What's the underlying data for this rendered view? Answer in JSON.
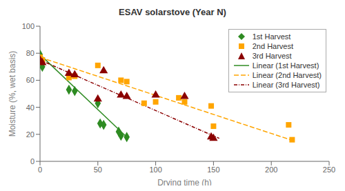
{
  "chart_data": {
    "type": "scatter",
    "title": "ESAV solarstove (Year N)",
    "xlabel": "Drying time (h)",
    "ylabel": "Moisture (%, wet basis)",
    "xlim": [
      0,
      250
    ],
    "ylim": [
      0,
      100
    ],
    "xticks": [
      0,
      50,
      100,
      150,
      200,
      250
    ],
    "yticks": [
      0,
      20,
      40,
      60,
      80,
      100
    ],
    "grid": false,
    "legend": "upper right",
    "series": [
      {
        "name": "1st Harvest",
        "type": "scatter",
        "color": "#2e8b22",
        "marker": "diamond",
        "x": [
          0,
          2,
          25,
          30,
          50,
          52,
          55,
          68,
          70,
          75
        ],
        "values": [
          79,
          70,
          53,
          52,
          43,
          28,
          27,
          22,
          19,
          18
        ]
      },
      {
        "name": "2nd Harvest",
        "type": "scatter",
        "color": "#ffa500",
        "marker": "square",
        "x": [
          0,
          2,
          25,
          30,
          50,
          70,
          75,
          90,
          100,
          120,
          125,
          148,
          150,
          215,
          218
        ],
        "values": [
          77,
          75,
          62,
          63,
          71,
          60,
          59,
          43,
          44,
          47,
          44,
          41,
          26,
          27,
          16
        ]
      },
      {
        "name": "3rd Harvest",
        "type": "scatter",
        "color": "#8b0000",
        "marker": "triangle",
        "x": [
          0,
          2,
          25,
          30,
          50,
          55,
          70,
          75,
          100,
          125,
          148,
          150
        ],
        "values": [
          75,
          73,
          65,
          64,
          46,
          67,
          49,
          48,
          49,
          48,
          18,
          17
        ]
      },
      {
        "name": "Linear (1st Harvest)",
        "type": "line",
        "color": "#2e8b22",
        "line_style": "solid",
        "x": [
          0,
          75
        ],
        "values": [
          79,
          18
        ]
      },
      {
        "name": "Linear (2nd Harvest)",
        "type": "line",
        "color": "#ffa500",
        "line_style": "dashed",
        "x": [
          0,
          220
        ],
        "values": [
          77,
          15
        ]
      },
      {
        "name": "Linear (3rd Harvest)",
        "type": "line",
        "color": "#8b0000",
        "line_style": "dashdot",
        "x": [
          0,
          155
        ],
        "values": [
          75,
          17
        ]
      }
    ]
  }
}
